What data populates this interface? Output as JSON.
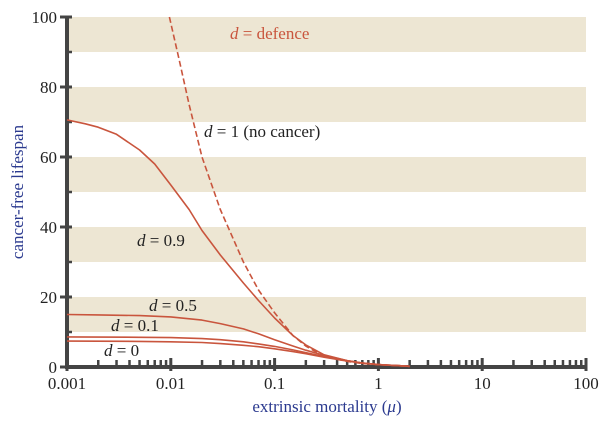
{
  "chart_data": {
    "type": "line",
    "xlabel": "extrinsic mortality (μ)",
    "ylabel": "cancer-free lifespan",
    "xscale": "log",
    "xlim": [
      0.001,
      100
    ],
    "ylim": [
      0,
      100
    ],
    "xticks": [
      0.001,
      0.01,
      0.1,
      1,
      10,
      100
    ],
    "xtick_labels": [
      "0.001",
      "0.01",
      "0.1",
      "1",
      "10",
      "100"
    ],
    "yticks": [
      0,
      20,
      40,
      60,
      80,
      100
    ],
    "ytick_labels": [
      "0",
      "20",
      "40",
      "60",
      "80",
      "100"
    ],
    "background_bands": [
      [
        10,
        20
      ],
      [
        30,
        40
      ],
      [
        50,
        60
      ],
      [
        70,
        80
      ],
      [
        90,
        100
      ]
    ],
    "colors": {
      "band": "#ede6d3",
      "curve": "#c9553d",
      "axis": "#444444",
      "axis_title": "#2b3a8f",
      "text": "#222222"
    },
    "series": [
      {
        "name": "d = 1 (no cancer)",
        "style": "dashed",
        "x": [
          0.0097,
          0.012,
          0.015,
          0.02,
          0.03,
          0.05,
          0.07,
          0.1,
          0.15,
          0.2,
          0.3,
          0.5,
          0.7,
          1,
          1.5,
          2
        ],
        "y": [
          100,
          88,
          75,
          60,
          45,
          30,
          22,
          15.5,
          9,
          6,
          3,
          1.6,
          1.0,
          0.7,
          0.4,
          0.2
        ]
      },
      {
        "name": "d = 0.9",
        "style": "solid",
        "x": [
          0.001,
          0.0015,
          0.002,
          0.003,
          0.005,
          0.007,
          0.01,
          0.015,
          0.02,
          0.03,
          0.05,
          0.07,
          0.1,
          0.15,
          0.2,
          0.3,
          0.5,
          0.7,
          1,
          1.5,
          2
        ],
        "y": [
          70.6,
          69.5,
          68.5,
          66.5,
          62,
          58,
          52,
          45,
          39,
          32,
          24,
          19,
          14,
          9,
          6.3,
          3.5,
          1.8,
          1.1,
          0.7,
          0.4,
          0.2
        ]
      },
      {
        "name": "d = 0.5",
        "style": "solid",
        "x": [
          0.001,
          0.002,
          0.005,
          0.01,
          0.02,
          0.03,
          0.05,
          0.07,
          0.1,
          0.15,
          0.2,
          0.3,
          0.5,
          0.7,
          1,
          1.5,
          2
        ],
        "y": [
          15,
          14.9,
          14.7,
          14.3,
          13.4,
          12.4,
          10.9,
          9.5,
          7.8,
          6,
          4.8,
          3.3,
          1.8,
          1.1,
          0.7,
          0.4,
          0.2
        ]
      },
      {
        "name": "d = 0.1",
        "style": "solid",
        "x": [
          0.001,
          0.005,
          0.01,
          0.02,
          0.03,
          0.05,
          0.07,
          0.1,
          0.15,
          0.2,
          0.3,
          0.5,
          0.7,
          1,
          1.5,
          2
        ],
        "y": [
          8.6,
          8.5,
          8.4,
          8.1,
          7.8,
          7.2,
          6.6,
          5.9,
          4.9,
          4.1,
          3.0,
          1.8,
          1.1,
          0.7,
          0.4,
          0.2
        ]
      },
      {
        "name": "d = 0",
        "style": "solid",
        "x": [
          0.001,
          0.005,
          0.01,
          0.02,
          0.03,
          0.05,
          0.07,
          0.1,
          0.15,
          0.2,
          0.3,
          0.5,
          0.7,
          1,
          1.5,
          2
        ],
        "y": [
          7.4,
          7.3,
          7.2,
          7.0,
          6.7,
          6.2,
          5.8,
          5.2,
          4.4,
          3.8,
          2.8,
          1.7,
          1.1,
          0.7,
          0.4,
          0.2
        ]
      }
    ],
    "annotations": [
      {
        "key": "defence",
        "var": "d",
        "text": " = defence"
      },
      {
        "key": "d1",
        "var": "d",
        "text": " = 1 (no cancer)"
      },
      {
        "key": "d09",
        "var": "d",
        "text": " = 0.9"
      },
      {
        "key": "d05",
        "var": "d",
        "text": " = 0.5"
      },
      {
        "key": "d01",
        "var": "d",
        "text": " = 0.1"
      },
      {
        "key": "d0",
        "var": "d",
        "text": " = 0"
      }
    ]
  }
}
